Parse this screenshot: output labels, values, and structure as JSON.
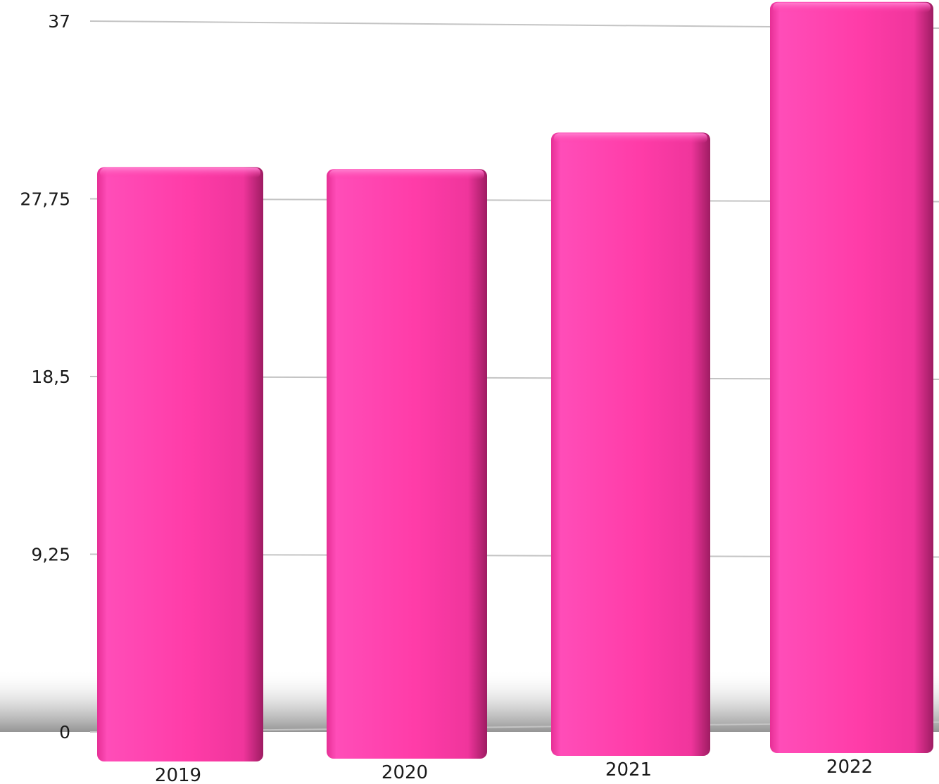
{
  "chart_data": {
    "type": "bar",
    "categories": [
      "2019",
      "2020",
      "2021",
      "2022"
    ],
    "values": [
      29.4,
      29.3,
      31.2,
      38.0
    ],
    "y_ticks": [
      "0",
      "9,25",
      "18,5",
      "27,75",
      "37"
    ],
    "y_tick_values": [
      0,
      9.25,
      18.5,
      27.75,
      37
    ],
    "ylim": [
      0,
      37
    ],
    "grid": true,
    "legend": "none",
    "title": "",
    "xlabel": "",
    "ylabel": "",
    "colors": {
      "bar": "#ff3ca8",
      "bar_highlight": "#ff55bf",
      "bar_shade": "#b0206f",
      "gridline": "#c4c4c4",
      "text": "#1a1a1a"
    }
  }
}
